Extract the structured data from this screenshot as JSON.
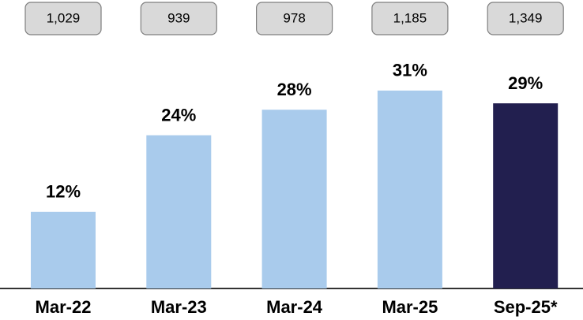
{
  "chart_data": {
    "type": "bar",
    "categories": [
      "Mar-22",
      "Mar-23",
      "Mar-24",
      "Mar-25",
      "Sep-25*"
    ],
    "values": [
      12,
      24,
      28,
      31,
      29
    ],
    "value_labels": [
      "12%",
      "24%",
      "28%",
      "31%",
      "29%"
    ],
    "colors": [
      "#a9cbec",
      "#a9cbec",
      "#a9cbec",
      "#a9cbec",
      "#221f4f"
    ],
    "annotations": [
      "1,029",
      "939",
      "978",
      "1,185",
      "1,349"
    ]
  }
}
